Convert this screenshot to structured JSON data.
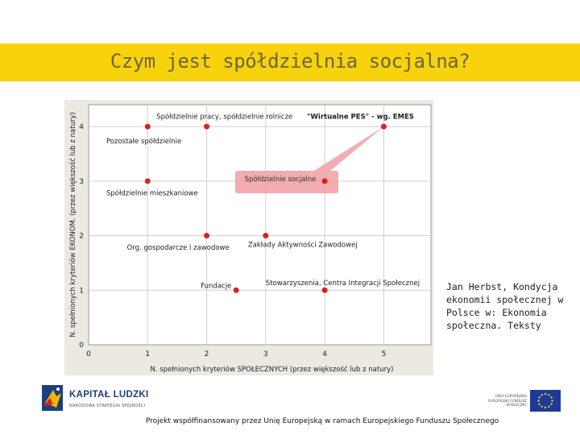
{
  "title": "Czym jest spółdzielnia socjalna?",
  "citation": "Jan Herbst, Kondycja ekonomii społecznej w Polsce w: Ekonomia społeczna. Teksty",
  "footer": "Projekt współfinansowany przez Unię Europejską w ramach Europejskiego Funduszu Społecznego",
  "logo_kapital": {
    "name": "KAPITAŁ LUDZKI",
    "subtitle": "NARODOWA STRATEGIA SPÓJNOŚCI"
  },
  "logo_eu": {
    "text": "UNIA EUROPEJSKA EUROPEJSKI FUNDUSZ SPOŁECZNY"
  },
  "colors": {
    "title_bar": "#f7d20d",
    "marker": "#d9231e",
    "highlight": "#f2a3a6",
    "chart_bg": "#ece9e3"
  },
  "chart_data": {
    "type": "scatter",
    "xlabel": "N. spełnionych kryteriów SPOŁECZNYCH (przez większość lub z natury)",
    "ylabel": "N. spełnionych kryteriów EKONOM. (przez większość lub z natury)",
    "xlim": [
      0,
      5.8
    ],
    "ylim": [
      0,
      4.4
    ],
    "x_ticks": [
      "0",
      "1",
      "2",
      "3",
      "4",
      "5"
    ],
    "y_ticks": [
      "0",
      "1",
      "2",
      "3",
      "4"
    ],
    "grid": true,
    "points": [
      {
        "x": 1,
        "y": 4
      },
      {
        "x": 2,
        "y": 4
      },
      {
        "x": 5,
        "y": 4
      },
      {
        "x": 1,
        "y": 3
      },
      {
        "x": 4,
        "y": 3
      },
      {
        "x": 2,
        "y": 2
      },
      {
        "x": 3,
        "y": 2
      },
      {
        "x": 2.5,
        "y": 1
      },
      {
        "x": 4,
        "y": 1
      }
    ],
    "labels": [
      {
        "text": "Spółdzielnie pracy, spółdzielnie rolnicze",
        "x": 1.15,
        "y": 4.2,
        "bold": false
      },
      {
        "text": "\"Wirtualne PES\" - wg. EMES",
        "x": 3.7,
        "y": 4.2,
        "bold": true
      },
      {
        "text": "Pozostałe spółdzielnie",
        "x": 0.3,
        "y": 3.75,
        "bold": false
      },
      {
        "text": "Spółdzielnie mieszkaniowe",
        "x": 0.3,
        "y": 2.8,
        "bold": false
      },
      {
        "text": "Org. gospodarcze i zawodowe",
        "x": 0.65,
        "y": 1.8,
        "bold": false
      },
      {
        "text": "Zakłady Aktywności Zawodowej",
        "x": 2.7,
        "y": 1.85,
        "bold": false
      },
      {
        "text": "Fundacje",
        "x": 1.9,
        "y": 1.1,
        "bold": false
      },
      {
        "text": "Stowarzyszenia, Centra Integracji Społecznej",
        "x": 3.0,
        "y": 1.15,
        "bold": false
      }
    ],
    "annotation": {
      "text": "Spółdzielnie socjalne",
      "anchor_x": 5,
      "anchor_y": 4
    }
  }
}
